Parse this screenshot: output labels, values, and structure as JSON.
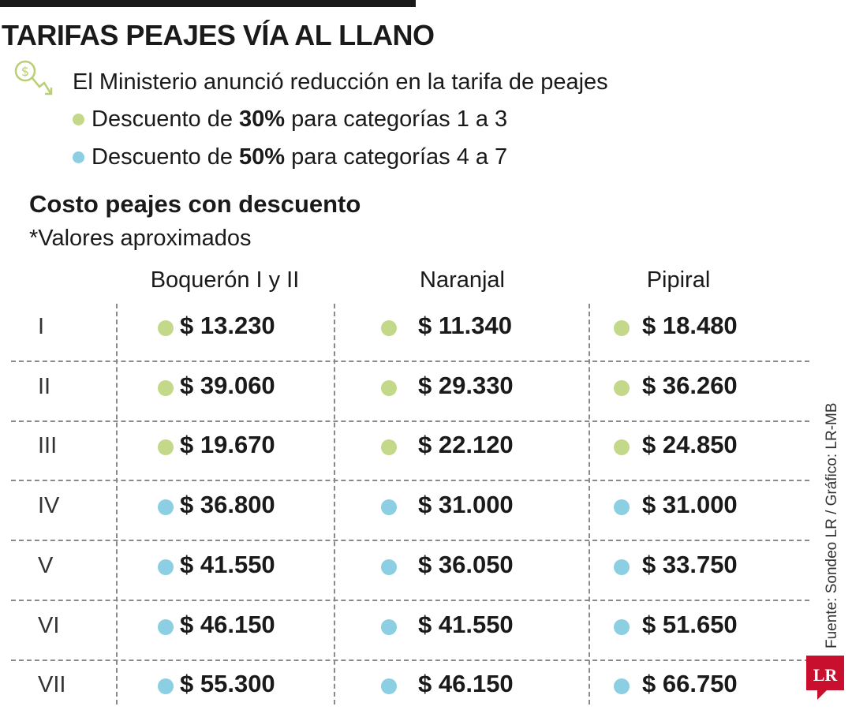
{
  "header": {
    "title": "TARIFAS PEAJES VÍA AL LLANO",
    "intro": "El Ministerio anunció reducción en la tarifa de peajes",
    "bullets": [
      {
        "pre": "Descuento de ",
        "bold": "30%",
        "post": " para categorías 1 a 3",
        "color": "#c3d888"
      },
      {
        "pre": "Descuento de ",
        "bold": "50%",
        "post": " para categorías 4 a 7",
        "color": "#8ccfe3"
      }
    ]
  },
  "chart_data": {
    "type": "table",
    "title": "Costo peajes con descuento",
    "subtitle": "*Valores aproximados",
    "columns": [
      "Boquerón I y II",
      "Naranjal",
      "Pipiral"
    ],
    "rows": [
      {
        "label": "I",
        "values": [
          "$ 13.230",
          "$ 11.340",
          "$ 18.480"
        ],
        "group": "30%",
        "color": "#c3d888"
      },
      {
        "label": "II",
        "values": [
          "$ 39.060",
          "$ 29.330",
          "$ 36.260"
        ],
        "group": "30%",
        "color": "#c3d888"
      },
      {
        "label": "III",
        "values": [
          "$ 19.670",
          "$ 22.120",
          "$ 24.850"
        ],
        "group": "30%",
        "color": "#c3d888"
      },
      {
        "label": "IV",
        "values": [
          "$ 36.800",
          "$ 31.000",
          "$ 31.000"
        ],
        "group": "50%",
        "color": "#8ccfe3"
      },
      {
        "label": "V",
        "values": [
          "$ 41.550",
          "$ 36.050",
          "$ 33.750"
        ],
        "group": "50%",
        "color": "#8ccfe3"
      },
      {
        "label": "VI",
        "values": [
          "$ 46.150",
          "$ 41.550",
          "$ 51.650"
        ],
        "group": "50%",
        "color": "#8ccfe3"
      },
      {
        "label": "VII",
        "values": [
          "$ 55.300",
          "$ 46.150",
          "$ 66.750"
        ],
        "group": "50%",
        "color": "#8ccfe3"
      }
    ]
  },
  "footer": {
    "source": "Fuente: Sondeo LR / Gráfico: LR-MB",
    "logo": "LR",
    "logo_color": "#c8102e"
  },
  "icons": {
    "money": "money-down-icon"
  }
}
